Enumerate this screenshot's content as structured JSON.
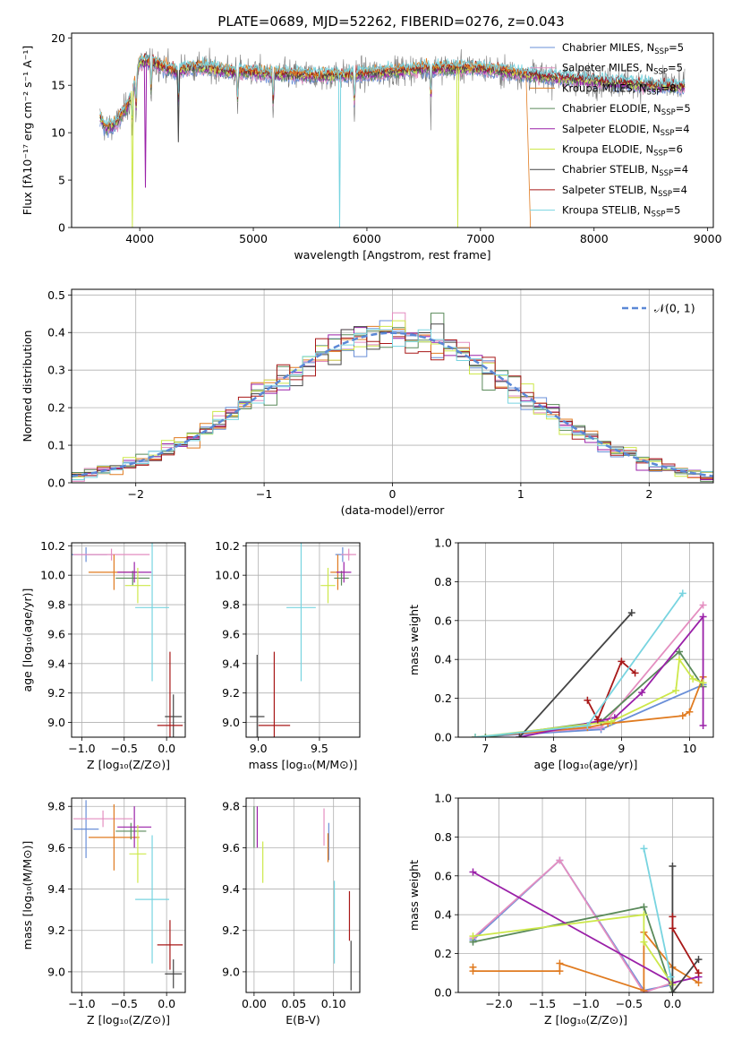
{
  "figure_title": "PLATE=0689, MJD=52262, FIBERID=0276, z=0.043",
  "colors": {
    "Chabrier MILES": "#6a8fd8",
    "Salpeter MILES": "#e48ec0",
    "Kroupa MILES": "#e07b20",
    "Chabrier ELODIE": "#5a8a5a",
    "Salpeter ELODIE": "#9a20a8",
    "Kroupa ELODIE": "#cde84a",
    "Chabrier STELIB": "#444444",
    "Salpeter STELIB": "#a81818",
    "Kroupa STELIB": "#78d4e0"
  },
  "chart_data": [
    {
      "id": "spectrum",
      "type": "line",
      "xlabel": "wavelength [Angstrom, rest frame]",
      "ylabel": "Flux [fλ10⁻¹⁷ erg cm⁻² s⁻¹ A⁻¹]",
      "xlim": [
        3400,
        9050
      ],
      "ylim": [
        0,
        20.5
      ],
      "xticks": [
        4000,
        5000,
        6000,
        7000,
        8000,
        9000
      ],
      "yticks": [
        0,
        5,
        10,
        15,
        20
      ],
      "legend_position": "upper right",
      "legend": [
        {
          "label": "Chabrier MILES, N",
          "sub": "SSP",
          "count": "=5",
          "model": "Chabrier MILES"
        },
        {
          "label": "Salpeter MILES, N",
          "sub": "SSP",
          "count": "=5",
          "model": "Salpeter MILES"
        },
        {
          "label": "Kroupa MILES, N",
          "sub": "SSP",
          "count": "=8",
          "model": "Kroupa MILES"
        },
        {
          "label": "Chabrier ELODIE, N",
          "sub": "SSP",
          "count": "=5",
          "model": "Chabrier ELODIE"
        },
        {
          "label": "Salpeter ELODIE, N",
          "sub": "SSP",
          "count": "=4",
          "model": "Salpeter ELODIE"
        },
        {
          "label": "Kroupa ELODIE, N",
          "sub": "SSP",
          "count": "=6",
          "model": "Kroupa ELODIE"
        },
        {
          "label": "Chabrier STELIB, N",
          "sub": "SSP",
          "count": "=4",
          "model": "Chabrier STELIB"
        },
        {
          "label": "Salpeter STELIB, N",
          "sub": "SSP",
          "count": "=4",
          "model": "Salpeter STELIB"
        },
        {
          "label": "Kroupa STELIB, N",
          "sub": "SSP",
          "count": "=5",
          "model": "Kroupa STELIB"
        }
      ],
      "continuum": [
        [
          3650,
          11.5
        ],
        [
          3700,
          10.5
        ],
        [
          3800,
          11
        ],
        [
          3900,
          13
        ],
        [
          3950,
          15
        ],
        [
          4000,
          17.5
        ],
        [
          4100,
          17.5
        ],
        [
          4300,
          16.5
        ],
        [
          4500,
          17
        ],
        [
          4800,
          16.5
        ],
        [
          5200,
          16.2
        ],
        [
          5600,
          16
        ],
        [
          6000,
          16.2
        ],
        [
          6500,
          16.8
        ],
        [
          7000,
          16.8
        ],
        [
          7500,
          16
        ],
        [
          8000,
          15.5
        ],
        [
          8500,
          15
        ],
        [
          8800,
          14.8
        ]
      ],
      "features": [
        {
          "x": 3935,
          "y": 0.0,
          "model": "Kroupa ELODIE"
        },
        {
          "x": 4050,
          "y": 4.2,
          "model": "Salpeter ELODIE"
        },
        {
          "x": 4340,
          "y": 9.0,
          "model": "Chabrier STELIB"
        },
        {
          "x": 5760,
          "y": 0.0,
          "model": "Kroupa STELIB"
        },
        {
          "x": 6800,
          "y": 0.0,
          "model": "Kroupa ELODIE"
        }
      ],
      "drop": {
        "x_start": 7400,
        "x_end": 7440,
        "model": "Kroupa MILES"
      }
    },
    {
      "id": "residuals",
      "type": "histogram",
      "xlabel": "(data-model)/error",
      "ylabel": "Normed distribution",
      "xlim": [
        -2.5,
        2.5
      ],
      "ylim": [
        0,
        0.515
      ],
      "xticks": [
        -2,
        -1,
        0,
        1,
        2
      ],
      "yticks": [
        0.0,
        0.1,
        0.2,
        0.3,
        0.4,
        0.5
      ],
      "bins": 50,
      "legend_position": "upper right",
      "reference_label": "𝒩(0, 1)",
      "reference_color": "#5b88d6"
    },
    {
      "id": "age-vs-z",
      "type": "scatter",
      "xlabel": "Z [log₁₀(Z/Z⊙)]",
      "ylabel": "age  [log₁₀(age/yr)]",
      "xlim": [
        -1.12,
        0.22
      ],
      "ylim": [
        8.9,
        10.22
      ],
      "xticks": [
        -1.0,
        -0.5,
        0.0
      ],
      "yticks": [
        9.0,
        9.2,
        9.4,
        9.6,
        9.8,
        10.0,
        10.2
      ],
      "points": [
        {
          "model": "Chabrier MILES",
          "x": -0.95,
          "y": 10.14,
          "xerr": 0.25,
          "yerr": 0.05
        },
        {
          "model": "Salpeter MILES",
          "x": -0.65,
          "y": 10.14,
          "xerr": 0.45,
          "yerr": 0.04
        },
        {
          "model": "Kroupa MILES",
          "x": -0.62,
          "y": 10.02,
          "xerr": 0.3,
          "yerr": 0.12
        },
        {
          "model": "Chabrier ELODIE",
          "x": -0.4,
          "y": 9.98,
          "xerr": 0.2,
          "yerr": 0.05
        },
        {
          "model": "Salpeter ELODIE",
          "x": -0.38,
          "y": 10.02,
          "xerr": 0.2,
          "yerr": 0.07
        },
        {
          "model": "Kroupa ELODIE",
          "x": -0.34,
          "y": 9.93,
          "xerr": 0.15,
          "yerr": 0.12
        },
        {
          "model": "Chabrier STELIB",
          "x": 0.08,
          "y": 9.04,
          "xerr": 0.1,
          "yerr": 0.15
        },
        {
          "model": "Salpeter STELIB",
          "x": 0.04,
          "y": 8.98,
          "xerr": 0.15,
          "yerr": 0.5
        },
        {
          "model": "Kroupa STELIB",
          "x": -0.17,
          "y": 9.78,
          "xerr": 0.2,
          "yerr": 0.5
        }
      ]
    },
    {
      "id": "age-vs-mass",
      "type": "scatter",
      "xlabel": "mass [log₁₀(M/M⊙)]",
      "ylabel": "",
      "xlim": [
        8.9,
        9.83
      ],
      "ylim": [
        8.9,
        10.22
      ],
      "xticks": [
        9.0,
        9.5
      ],
      "yticks": [
        9.0,
        9.2,
        9.4,
        9.6,
        9.8,
        10.0,
        10.2
      ],
      "points": [
        {
          "model": "Chabrier MILES",
          "x": 9.69,
          "y": 10.14,
          "xerr": 0.06,
          "yerr": 0.05
        },
        {
          "model": "Salpeter MILES",
          "x": 9.74,
          "y": 10.14,
          "xerr": 0.06,
          "yerr": 0.04
        },
        {
          "model": "Kroupa MILES",
          "x": 9.65,
          "y": 10.02,
          "xerr": 0.06,
          "yerr": 0.12
        },
        {
          "model": "Chabrier ELODIE",
          "x": 9.68,
          "y": 9.98,
          "xerr": 0.06,
          "yerr": 0.05
        },
        {
          "model": "Salpeter ELODIE",
          "x": 9.7,
          "y": 10.02,
          "xerr": 0.06,
          "yerr": 0.07
        },
        {
          "model": "Kroupa ELODIE",
          "x": 9.57,
          "y": 9.93,
          "xerr": 0.06,
          "yerr": 0.12
        },
        {
          "model": "Chabrier STELIB",
          "x": 8.99,
          "y": 9.04,
          "xerr": 0.06,
          "yerr": 0.42
        },
        {
          "model": "Salpeter STELIB",
          "x": 9.13,
          "y": 8.98,
          "xerr": 0.13,
          "yerr": 0.5
        },
        {
          "model": "Kroupa STELIB",
          "x": 9.35,
          "y": 9.78,
          "xerr": 0.12,
          "yerr": 0.5
        }
      ]
    },
    {
      "id": "massweight-vs-age",
      "type": "line",
      "xlabel": "age  [log₁₀(age/yr)]",
      "ylabel": "mass weight",
      "xlim": [
        6.6,
        10.35
      ],
      "ylim": [
        0,
        1.0
      ],
      "xticks": [
        7,
        8,
        9,
        10
      ],
      "yticks": [
        0.0,
        0.2,
        0.4,
        0.6,
        0.8,
        1.0
      ],
      "series": [
        {
          "model": "Chabrier MILES",
          "x": [
            6.85,
            8.7,
            10.2
          ],
          "y": [
            0.0,
            0.04,
            0.27
          ]
        },
        {
          "model": "Salpeter MILES",
          "x": [
            6.85,
            8.7,
            10.2
          ],
          "y": [
            0.0,
            0.05,
            0.68
          ]
        },
        {
          "model": "Kroupa MILES",
          "x": [
            6.85,
            8.5,
            8.8,
            9.9,
            10.0,
            10.2
          ],
          "y": [
            0.0,
            0.05,
            0.07,
            0.11,
            0.13,
            0.31
          ]
        },
        {
          "model": "Chabrier ELODIE",
          "x": [
            7.0,
            8.7,
            9.85,
            10.2
          ],
          "y": [
            0.0,
            0.08,
            0.44,
            0.26
          ]
        },
        {
          "model": "Salpeter ELODIE",
          "x": [
            7.5,
            8.9,
            9.3,
            10.2,
            10.2
          ],
          "y": [
            0.0,
            0.1,
            0.23,
            0.62,
            0.06
          ]
        },
        {
          "model": "Kroupa ELODIE",
          "x": [
            6.85,
            8.85,
            9.8,
            9.85,
            10.05,
            10.2
          ],
          "y": [
            0.0,
            0.08,
            0.24,
            0.4,
            0.3,
            0.28
          ]
        },
        {
          "model": "Chabrier STELIB",
          "x": [
            7.5,
            9.15
          ],
          "y": [
            0.0,
            0.64
          ]
        },
        {
          "model": "Salpeter STELIB",
          "x": [
            8.5,
            8.65,
            9.0,
            9.2
          ],
          "y": [
            0.19,
            0.09,
            0.39,
            0.33
          ]
        },
        {
          "model": "Kroupa STELIB",
          "x": [
            6.85,
            8.5,
            9.9
          ],
          "y": [
            0.0,
            0.06,
            0.74
          ]
        }
      ]
    },
    {
      "id": "mass-vs-z",
      "type": "scatter",
      "xlabel": "Z [log₁₀(Z/Z⊙)]",
      "ylabel": "mass [log₁₀(M/M⊙)]",
      "xlim": [
        -1.12,
        0.22
      ],
      "ylim": [
        8.9,
        9.84
      ],
      "xticks": [
        -1.0,
        -0.5,
        0.0
      ],
      "yticks": [
        9.0,
        9.2,
        9.4,
        9.6,
        9.8
      ],
      "points": [
        {
          "model": "Chabrier MILES",
          "x": -0.95,
          "y": 9.69,
          "xerr": 0.15,
          "yerr": 0.14
        },
        {
          "model": "Salpeter MILES",
          "x": -0.75,
          "y": 9.74,
          "xerr": 0.35,
          "yerr": 0.04
        },
        {
          "model": "Kroupa MILES",
          "x": -0.62,
          "y": 9.65,
          "xerr": 0.3,
          "yerr": 0.16
        },
        {
          "model": "Chabrier ELODIE",
          "x": -0.42,
          "y": 9.68,
          "xerr": 0.18,
          "yerr": 0.04
        },
        {
          "model": "Salpeter ELODIE",
          "x": -0.38,
          "y": 9.7,
          "xerr": 0.2,
          "yerr": 0.1
        },
        {
          "model": "Kroupa ELODIE",
          "x": -0.34,
          "y": 9.57,
          "xerr": 0.1,
          "yerr": 0.14
        },
        {
          "model": "Chabrier STELIB",
          "x": 0.08,
          "y": 8.99,
          "xerr": 0.1,
          "yerr": 0.07
        },
        {
          "model": "Salpeter STELIB",
          "x": 0.04,
          "y": 9.13,
          "xerr": 0.15,
          "yerr": 0.12
        },
        {
          "model": "Kroupa STELIB",
          "x": -0.17,
          "y": 9.35,
          "xerr": 0.2,
          "yerr": 0.31
        }
      ]
    },
    {
      "id": "mass-vs-ebv",
      "type": "scatter",
      "xlabel": "E(B-V)",
      "ylabel": "",
      "xlim": [
        -0.01,
        0.133
      ],
      "ylim": [
        8.9,
        9.84
      ],
      "xticks": [
        0.0,
        0.05,
        0.1
      ],
      "yticks": [
        9.0,
        9.2,
        9.4,
        9.6,
        9.8
      ],
      "points": [
        {
          "model": "Chabrier MILES",
          "x": 0.094,
          "y": 9.63,
          "xerr": 0,
          "yerr": 0.09
        },
        {
          "model": "Salpeter MILES",
          "x": 0.088,
          "y": 9.7,
          "xerr": 0,
          "yerr": 0.09
        },
        {
          "model": "Kroupa MILES",
          "x": 0.093,
          "y": 9.6,
          "xerr": 0,
          "yerr": 0.07
        },
        {
          "model": "Chabrier ELODIE",
          "x": 0.0,
          "y": 9.7,
          "xerr": 0,
          "yerr": 0.1
        },
        {
          "model": "Salpeter ELODIE",
          "x": 0.004,
          "y": 9.7,
          "xerr": 0,
          "yerr": 0.1
        },
        {
          "model": "Kroupa ELODIE",
          "x": 0.011,
          "y": 9.53,
          "xerr": 0,
          "yerr": 0.1
        },
        {
          "model": "Chabrier STELIB",
          "x": 0.122,
          "y": 9.03,
          "xerr": 0,
          "yerr": 0.12
        },
        {
          "model": "Salpeter STELIB",
          "x": 0.12,
          "y": 9.27,
          "xerr": 0,
          "yerr": 0.12
        },
        {
          "model": "Kroupa STELIB",
          "x": 0.101,
          "y": 9.24,
          "xerr": 0,
          "yerr": 0.2
        }
      ]
    },
    {
      "id": "massweight-vs-z",
      "type": "line",
      "xlabel": "Z [log₁₀(Z/Z⊙)]",
      "ylabel": "mass weight",
      "xlim": [
        -2.47,
        0.47
      ],
      "ylim": [
        0,
        1.0
      ],
      "xticks": [
        -2.0,
        -1.5,
        -1.0,
        -0.5,
        0.0
      ],
      "yticks": [
        0.0,
        0.2,
        0.4,
        0.6,
        0.8,
        1.0
      ],
      "series": [
        {
          "model": "Chabrier MILES",
          "x": [
            -2.3,
            -1.3,
            -0.33,
            0.0
          ],
          "y": [
            0.27,
            0.68,
            0.01,
            0.04
          ]
        },
        {
          "model": "Salpeter MILES",
          "x": [
            -2.3,
            -1.3,
            -0.33,
            0.0
          ],
          "y": [
            0.28,
            0.68,
            0.0,
            0.05
          ]
        },
        {
          "model": "Kroupa MILES",
          "x": [
            -2.3,
            -2.3,
            -1.3,
            -1.3,
            -0.33,
            -0.33,
            0.0,
            0.3
          ],
          "y": [
            0.13,
            0.11,
            0.11,
            0.15,
            0.01,
            0.31,
            0.13,
            0.05
          ]
        },
        {
          "model": "Chabrier ELODIE",
          "x": [
            -2.3,
            -0.33,
            0.0
          ],
          "y": [
            0.26,
            0.44,
            0.0
          ]
        },
        {
          "model": "Salpeter ELODIE",
          "x": [
            -2.3,
            0.0,
            0.3
          ],
          "y": [
            0.62,
            0.05,
            0.08
          ]
        },
        {
          "model": "Kroupa ELODIE",
          "x": [
            -2.3,
            -0.33,
            -0.33,
            0.0
          ],
          "y": [
            0.29,
            0.4,
            0.26,
            0.04
          ]
        },
        {
          "model": "Chabrier STELIB",
          "x": [
            0.0,
            0.0,
            0.3
          ],
          "y": [
            0.65,
            0.0,
            0.17
          ]
        },
        {
          "model": "Salpeter STELIB",
          "x": [
            0.0,
            0.0,
            0.3
          ],
          "y": [
            0.39,
            0.33,
            0.1
          ]
        },
        {
          "model": "Kroupa STELIB",
          "x": [
            -0.33,
            -0.02
          ],
          "y": [
            0.74,
            0.08
          ]
        }
      ]
    }
  ]
}
